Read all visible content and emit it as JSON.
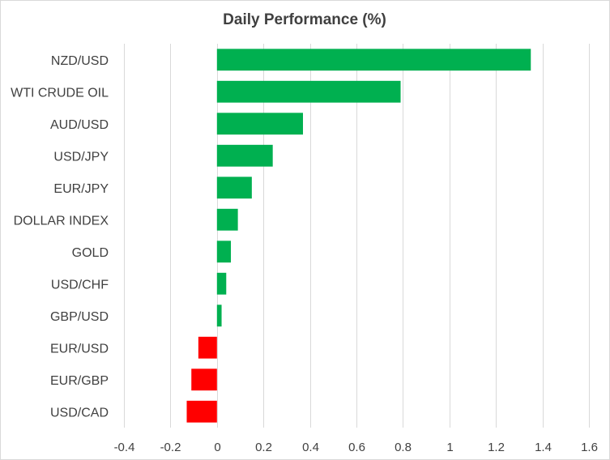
{
  "chart_data": {
    "type": "bar",
    "orientation": "horizontal",
    "title": "Daily Performance  (%)",
    "categories": [
      "NZD/USD",
      "WTI CRUDE OIL",
      "AUD/USD",
      "USD/JPY",
      "EUR/JPY",
      "DOLLAR INDEX",
      "GOLD",
      "USD/CHF",
      "GBP/USD",
      "EUR/USD",
      "EUR/GBP",
      "USD/CAD"
    ],
    "values": [
      1.35,
      0.79,
      0.37,
      0.24,
      0.15,
      0.09,
      0.06,
      0.04,
      0.02,
      -0.08,
      -0.11,
      -0.13
    ],
    "xlim": [
      -0.4,
      1.6
    ],
    "xticks": [
      -0.4,
      -0.2,
      0,
      0.2,
      0.4,
      0.6,
      0.8,
      1,
      1.2,
      1.4,
      1.6
    ],
    "xtick_labels": [
      "-0.4",
      "-0.2",
      "0",
      "0.2",
      "0.4",
      "0.6",
      "0.8",
      "1",
      "1.2",
      "1.4",
      "1.6"
    ],
    "grid": "vertical",
    "legend": "none",
    "colors": {
      "positive": "#00b050",
      "negative": "#ff0000",
      "grid": "#d9d9d9",
      "text": "#404040"
    }
  }
}
